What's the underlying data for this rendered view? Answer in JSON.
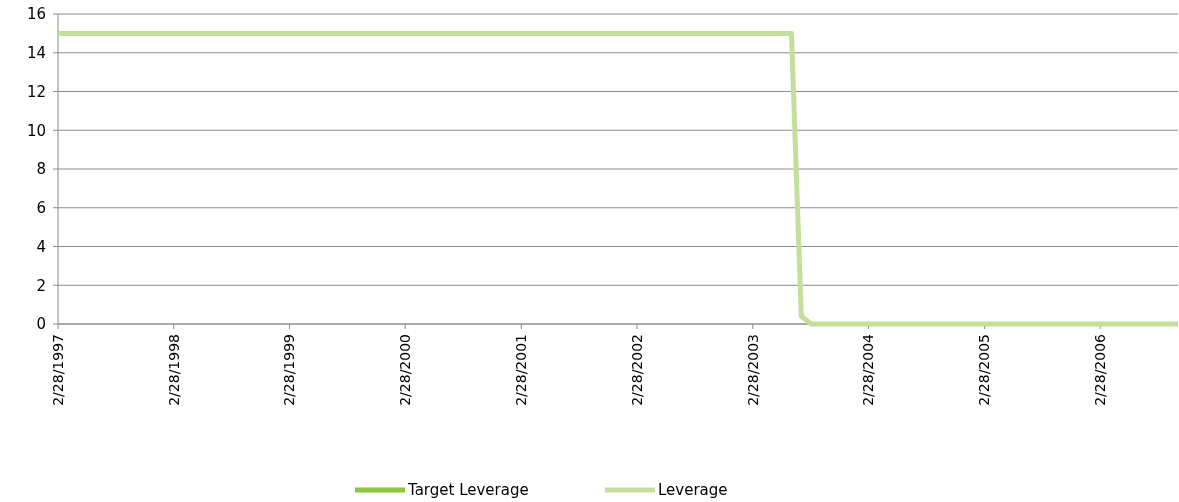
{
  "chart_data": {
    "type": "line",
    "x": [
      "1997-02-28",
      "2003-06-30",
      "2003-07-31",
      "2003-08-31",
      "2006-10-31"
    ],
    "series": [
      {
        "name": "Target Leverage",
        "color": "#8dc63f",
        "values": [
          null,
          null,
          null,
          null,
          null
        ]
      },
      {
        "name": "Leverage",
        "color": "#c3df9b",
        "values": [
          15,
          15,
          0.4,
          0,
          0
        ]
      }
    ],
    "xlim": [
      "1997-02-28",
      "2006-10-31"
    ],
    "xticks": [
      {
        "value": "1997-02-28",
        "label": "2/28/1997"
      },
      {
        "value": "1998-02-28",
        "label": "2/28/1998"
      },
      {
        "value": "1999-02-28",
        "label": "2/28/1999"
      },
      {
        "value": "2000-02-28",
        "label": "2/28/2000"
      },
      {
        "value": "2001-02-28",
        "label": "2/28/2001"
      },
      {
        "value": "2002-02-28",
        "label": "2/28/2002"
      },
      {
        "value": "2003-02-28",
        "label": "2/28/2003"
      },
      {
        "value": "2004-02-28",
        "label": "2/28/2004"
      },
      {
        "value": "2005-02-28",
        "label": "2/28/2005"
      },
      {
        "value": "2006-02-28",
        "label": "2/28/2006"
      }
    ],
    "ylim": [
      0,
      16
    ],
    "yticks": [
      0,
      2,
      4,
      6,
      8,
      10,
      12,
      14,
      16
    ],
    "grid": "y",
    "legend": "bottom",
    "marker": "none",
    "line_style": "solid"
  }
}
